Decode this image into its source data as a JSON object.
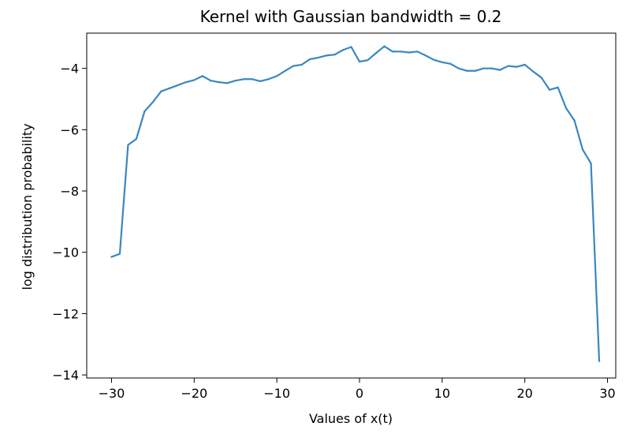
{
  "chart_data": {
    "type": "line",
    "title": "Kernel with Gaussian bandwidth = 0.2",
    "xlabel": "Values of x(t)",
    "ylabel": "log distribution probability",
    "xlim": [
      -33,
      31
    ],
    "ylim": [
      -14.1,
      -2.85
    ],
    "xticks": [
      -30,
      -20,
      -10,
      0,
      10,
      20,
      30
    ],
    "yticks": [
      -14,
      -12,
      -10,
      -8,
      -6,
      -4
    ],
    "xtick_labels": [
      "−30",
      "−20",
      "−10",
      "0",
      "10",
      "20",
      "30"
    ],
    "ytick_labels": [
      "−14",
      "−12",
      "−10",
      "−8",
      "−6",
      "−4"
    ],
    "grid": false,
    "series": [
      {
        "color": "#3a87c0",
        "x": [
          -30,
          -29,
          -28,
          -27,
          -26,
          -25,
          -24,
          -23,
          -22,
          -21,
          -20,
          -19,
          -18,
          -17,
          -16,
          -15,
          -14,
          -13,
          -12,
          -11,
          -10,
          -9,
          -8,
          -7,
          -6,
          -5,
          -4,
          -3,
          -2,
          -1,
          0,
          1,
          2,
          3,
          4,
          5,
          6,
          7,
          8,
          9,
          10,
          11,
          12,
          13,
          14,
          15,
          16,
          17,
          18,
          19,
          20,
          21,
          22,
          23,
          24,
          25,
          26,
          27,
          28,
          29
        ],
        "y": [
          -10.15,
          -10.05,
          -6.5,
          -6.3,
          -5.4,
          -5.1,
          -4.75,
          -4.65,
          -4.55,
          -4.45,
          -4.38,
          -4.25,
          -4.4,
          -4.45,
          -4.48,
          -4.4,
          -4.35,
          -4.35,
          -4.42,
          -4.35,
          -4.25,
          -4.08,
          -3.92,
          -3.88,
          -3.7,
          -3.65,
          -3.58,
          -3.55,
          -3.4,
          -3.3,
          -3.78,
          -3.73,
          -3.5,
          -3.28,
          -3.45,
          -3.45,
          -3.48,
          -3.45,
          -3.58,
          -3.72,
          -3.8,
          -3.85,
          -4.0,
          -4.08,
          -4.08,
          -4.0,
          -4.0,
          -4.05,
          -3.92,
          -3.95,
          -3.88,
          -4.1,
          -4.3,
          -4.7,
          -4.62,
          -5.3,
          -5.7,
          -6.65,
          -7.1,
          -13.55
        ]
      }
    ]
  }
}
